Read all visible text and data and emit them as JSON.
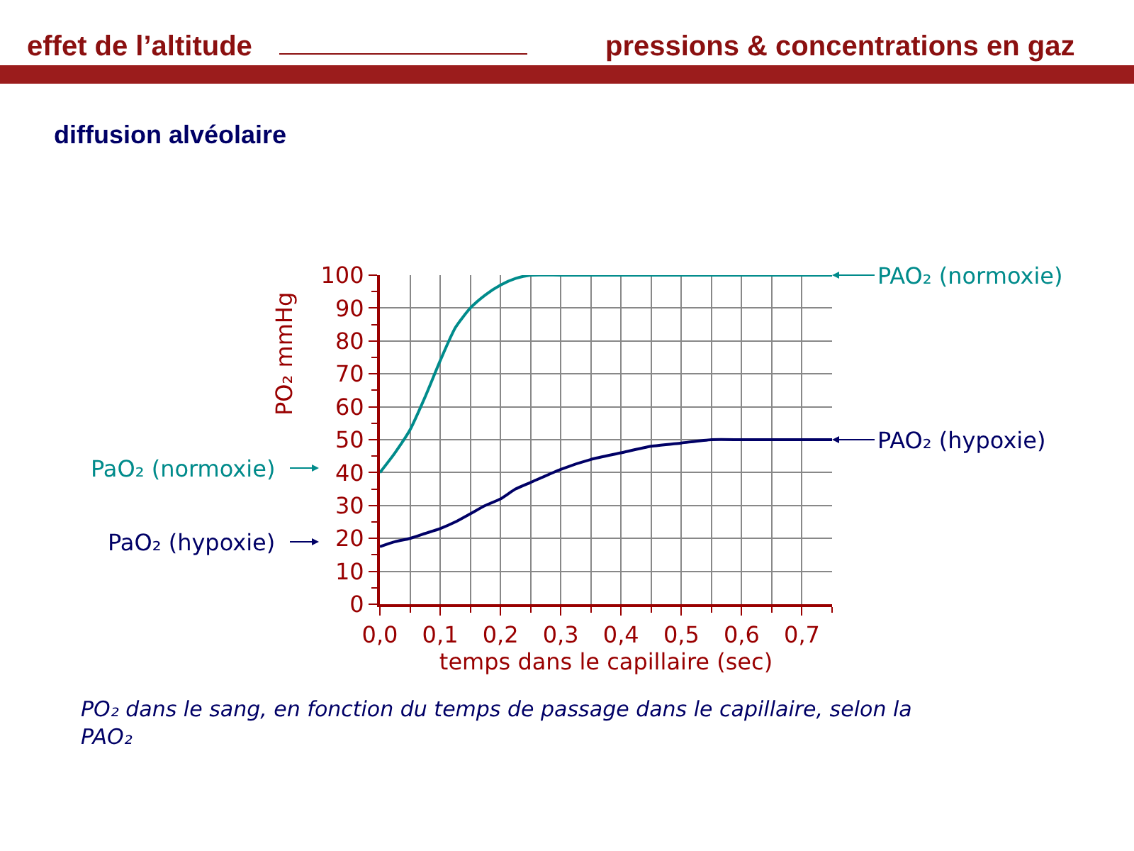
{
  "chart_data": {
    "type": "line",
    "title": "effet de l’altitude",
    "subtitle": "pressions & concentrations en gaz",
    "xlabel": "temps dans le capillaire (sec)",
    "ylabel": "PO₂ mmHg",
    "x": [
      0,
      0.025,
      0.05,
      0.075,
      0.1,
      0.125,
      0.15,
      0.175,
      0.2,
      0.225,
      0.25,
      0.3,
      0.35,
      0.4,
      0.45,
      0.5,
      0.55,
      0.6,
      0.65,
      0.7,
      0.75
    ],
    "series": [
      {
        "color": "#008b8b",
        "values": [
          40,
          46,
          53,
          63,
          74,
          84,
          90,
          94,
          97,
          99,
          100,
          100,
          100,
          100,
          100,
          100,
          100,
          100,
          100,
          100,
          100
        ]
      },
      {
        "color": "#000066",
        "values": [
          17.5,
          19,
          20,
          21.5,
          23,
          25,
          27.5,
          30,
          32,
          35,
          37,
          41,
          44,
          46,
          48,
          49,
          50,
          50,
          50,
          50,
          50
        ]
      }
    ],
    "xlim": [
      0,
      0.75
    ],
    "xticks": [
      {
        "value": 0,
        "label": "0,0"
      },
      {
        "value": 0.1,
        "label": "0,1"
      },
      {
        "value": 0.2,
        "label": "0,2"
      },
      {
        "value": 0.3,
        "label": "0,3"
      },
      {
        "value": 0.4,
        "label": "0,4"
      },
      {
        "value": 0.5,
        "label": "0,5"
      },
      {
        "value": 0.6,
        "label": "0,6"
      },
      {
        "value": 0.7,
        "label": "0,7"
      }
    ],
    "ylim": [
      0,
      100
    ],
    "yticks": [
      0,
      10,
      20,
      30,
      40,
      50,
      60,
      70,
      80,
      90,
      100
    ],
    "grid": true,
    "legend": false,
    "marker": "none",
    "line_style": "solid",
    "annotations": [
      {
        "text": "PAO₂ (normoxie)",
        "x": 0.75,
        "y": 100
      },
      {
        "text": "PAO₂ (hypoxie)",
        "x": 0.75,
        "y": 50
      },
      "diffusion alvéolaire",
      "PaO₂ (normoxie)",
      "PaO₂ (hypoxie)",
      "PO₂ dans le sang, en fonction du temps de passage dans le capillaire, selon la PAO₂"
    ]
  }
}
